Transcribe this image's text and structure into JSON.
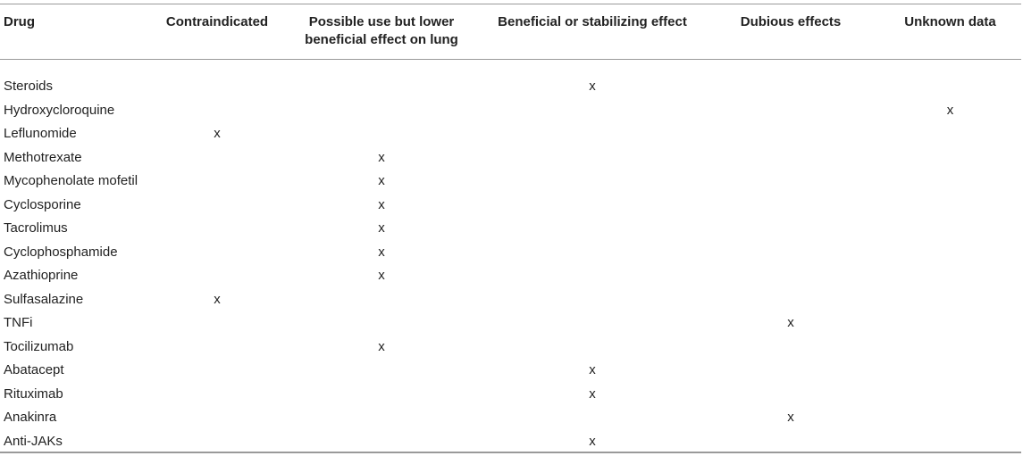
{
  "table": {
    "headers": [
      "Drug",
      "Contraindicated",
      "Possible use but lower beneficial effect on lung",
      "Beneficial or stabilizing effect",
      "Dubious effects",
      "Unknown data"
    ],
    "rows": [
      {
        "drug": "Steroids",
        "marks": [
          "",
          "",
          "x",
          "",
          ""
        ]
      },
      {
        "drug": "Hydroxycloroquine",
        "marks": [
          "",
          "",
          "",
          "",
          "x"
        ]
      },
      {
        "drug": "Leflunomide",
        "marks": [
          "x",
          "",
          "",
          "",
          ""
        ]
      },
      {
        "drug": "Methotrexate",
        "marks": [
          "",
          "x",
          "",
          "",
          ""
        ]
      },
      {
        "drug": "Mycophenolate mofetil",
        "marks": [
          "",
          "x",
          "",
          "",
          ""
        ]
      },
      {
        "drug": "Cyclosporine",
        "marks": [
          "",
          "x",
          "",
          "",
          ""
        ]
      },
      {
        "drug": "Tacrolimus",
        "marks": [
          "",
          "x",
          "",
          "",
          ""
        ]
      },
      {
        "drug": "Cyclophosphamide",
        "marks": [
          "",
          "x",
          "",
          "",
          ""
        ]
      },
      {
        "drug": "Azathioprine",
        "marks": [
          "",
          "x",
          "",
          "",
          ""
        ]
      },
      {
        "drug": "Sulfasalazine",
        "marks": [
          "x",
          "",
          "",
          "",
          ""
        ]
      },
      {
        "drug": "TNFi",
        "marks": [
          "",
          "",
          "",
          "x",
          ""
        ]
      },
      {
        "drug": "Tocilizumab",
        "marks": [
          "",
          "x",
          "",
          "",
          ""
        ]
      },
      {
        "drug": "Abatacept",
        "marks": [
          "",
          "",
          "x",
          "",
          ""
        ]
      },
      {
        "drug": "Rituximab",
        "marks": [
          "",
          "",
          "x",
          "",
          ""
        ]
      },
      {
        "drug": "Anakinra",
        "marks": [
          "",
          "",
          "",
          "x",
          ""
        ]
      },
      {
        "drug": "Anti-JAKs",
        "marks": [
          "",
          "",
          "x",
          "",
          ""
        ]
      }
    ]
  }
}
